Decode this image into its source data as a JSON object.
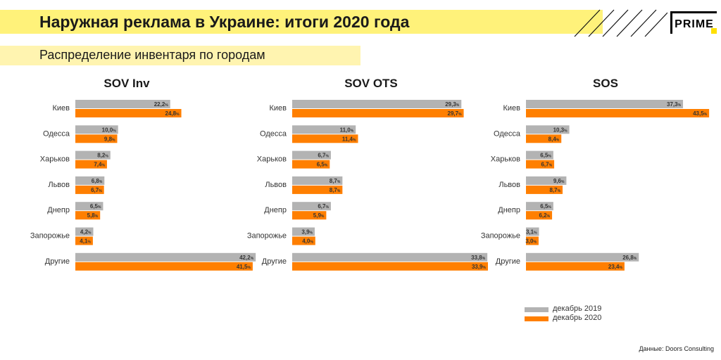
{
  "header": {
    "title": "Наружная реклама в Украине: итоги 2020 года",
    "subtitle": "Распределение инвентаря по городам",
    "logo": "PRIME"
  },
  "colors": {
    "dec2019": "#b3b3b3",
    "dec2020": "#ff7f00",
    "title_band": "#fff27a",
    "subtitle_band": "#fff4b0"
  },
  "legend": {
    "dec2019": "декабрь 2019",
    "dec2020": "декабрь 2020"
  },
  "footer": {
    "source": "Данные: Doors Consulting"
  },
  "chart_data": [
    {
      "type": "bar",
      "orientation": "horizontal",
      "title": "SOV Inv",
      "categories": [
        "Киев",
        "Одесса",
        "Харьков",
        "Львов",
        "Днепр",
        "Запорожье",
        "Другие"
      ],
      "series": [
        {
          "name": "декабрь 2019",
          "values": [
            22.2,
            10.0,
            8.2,
            6.8,
            6.5,
            4.2,
            42.2
          ],
          "labels": [
            "22,2",
            "10,0",
            "8,2",
            "6,8",
            "6,5",
            "4,2",
            "42,2"
          ]
        },
        {
          "name": "декабрь 2020",
          "values": [
            24.8,
            9.8,
            7.4,
            6.7,
            5.8,
            4.1,
            41.5
          ],
          "labels": [
            "24,8",
            "9,8",
            "7,4",
            "6,7",
            "5,8",
            "4,1",
            "41,5"
          ]
        }
      ],
      "unit": "%"
    },
    {
      "type": "bar",
      "orientation": "horizontal",
      "title": "SOV OTS",
      "categories": [
        "Киев",
        "Одесса",
        "Харьков",
        "Львов",
        "Днепр",
        "Запорожье",
        "Другие"
      ],
      "series": [
        {
          "name": "декабрь 2019",
          "values": [
            29.3,
            11.0,
            6.7,
            8.7,
            6.7,
            3.9,
            33.8
          ],
          "labels": [
            "29,3",
            "11,0",
            "6,7",
            "8,7",
            "6,7",
            "3,9",
            "33,8"
          ]
        },
        {
          "name": "декабрь 2020",
          "values": [
            29.7,
            11.4,
            6.5,
            8.7,
            5.9,
            4.0,
            33.9
          ],
          "labels": [
            "29,7",
            "11,4",
            "6,5",
            "8,7",
            "5,9",
            "4,0",
            "33,9"
          ]
        }
      ],
      "unit": "%"
    },
    {
      "type": "bar",
      "orientation": "horizontal",
      "title": "SOS",
      "categories": [
        "Киев",
        "Одесса",
        "Харьков",
        "Львов",
        "Днепр",
        "Запорожье",
        "Другие"
      ],
      "series": [
        {
          "name": "декабрь 2019",
          "values": [
            37.3,
            10.3,
            6.5,
            9.6,
            6.5,
            3.1,
            26.8
          ],
          "labels": [
            "37,3",
            "10,3",
            "6,5",
            "9,6",
            "6,5",
            "3,1",
            "26,8"
          ]
        },
        {
          "name": "декабрь 2020",
          "values": [
            43.5,
            8.4,
            6.7,
            8.7,
            6.2,
            3.0,
            23.4
          ],
          "labels": [
            "43,5",
            "8,4",
            "6,7",
            "8,7",
            "6,2",
            "3,0",
            "23,4"
          ]
        }
      ],
      "unit": "%"
    }
  ]
}
